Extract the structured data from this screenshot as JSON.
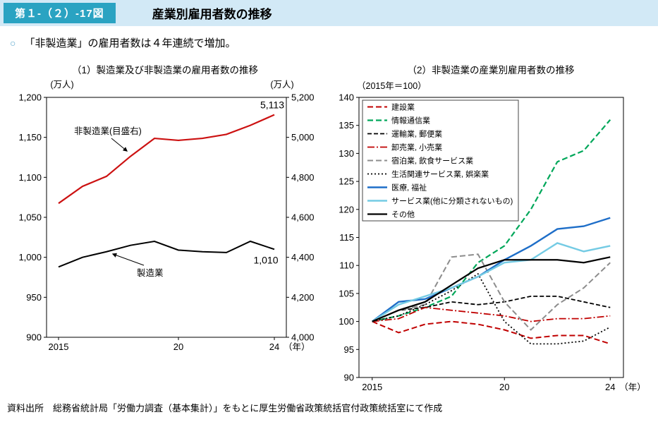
{
  "colors": {
    "band_bg": "#d2e9f6",
    "badge_bg": "#2aa3c2",
    "badge_text": "#ffffff",
    "bullet": "#5aa7cd"
  },
  "header": {
    "figure_label": "第１-（２）-17図",
    "title": "産業別雇用者数の推移"
  },
  "lead": {
    "bullet": "○",
    "text": "「非製造業」の雇用者数は４年連続で増加。"
  },
  "source": "資料出所　総務省統計局「労働力調査（基本集計）」をもとに厚生労働省政策統括官付政策統括室にて作成",
  "chart_data": [
    {
      "type": "line",
      "title": "（1）製造業及び非製造業の雇用者数の推移",
      "grid": false,
      "categories": [
        "2015",
        "2016",
        "2017",
        "2018",
        "2019",
        "2020",
        "2021",
        "2022",
        "2023",
        "2024"
      ],
      "x_ticks": [
        {
          "index": 0,
          "label": "2015"
        },
        {
          "index": 5,
          "label": "20"
        },
        {
          "index": 9,
          "label": "24"
        }
      ],
      "x_suffix": "（年）",
      "left_axis": {
        "label": "(万人)",
        "min": 900,
        "max": 1200,
        "step": 50
      },
      "right_axis": {
        "label": "(万人)",
        "min": 4000,
        "max": 5200,
        "step": 200
      },
      "series": [
        {
          "name": "非製造業(目盛右)",
          "axis": "right",
          "color": "#cc1111",
          "style": "solid",
          "width": 2.2,
          "end_label": "5,113",
          "values": [
            4670,
            4755,
            4805,
            4905,
            4995,
            4985,
            4995,
            5015,
            5060,
            5113
          ]
        },
        {
          "name": "製造業",
          "axis": "left",
          "color": "#000000",
          "style": "solid",
          "width": 2,
          "end_label": "1,010",
          "values": [
            988,
            1000,
            1007,
            1015,
            1020,
            1009,
            1007,
            1006,
            1020,
            1010
          ]
        }
      ]
    },
    {
      "type": "line",
      "title": "（2）非製造業の産業別雇用者数の推移",
      "subtitle": "（2015年＝100）",
      "grid": false,
      "legend_position": "top-left",
      "categories": [
        "2015",
        "2016",
        "2017",
        "2018",
        "2019",
        "2020",
        "2021",
        "2022",
        "2023",
        "2024"
      ],
      "x_ticks": [
        {
          "index": 0,
          "label": "2015"
        },
        {
          "index": 5,
          "label": "20"
        },
        {
          "index": 9,
          "label": "24"
        }
      ],
      "x_suffix": "（年）",
      "y_axis": {
        "min": 90,
        "max": 140,
        "step": 5
      },
      "series": [
        {
          "name": "建設業",
          "color": "#c00000",
          "style": "dash",
          "width": 2,
          "values": [
            100,
            98,
            99.5,
            100,
            99.5,
            98.5,
            97,
            97.5,
            97.5,
            96
          ]
        },
        {
          "name": "情報通信業",
          "color": "#00a75a",
          "style": "dash",
          "width": 2.2,
          "values": [
            100,
            101,
            102.5,
            104.5,
            110.5,
            113.5,
            120,
            128.5,
            130.5,
            136
          ]
        },
        {
          "name": "運輸業, 郵便業",
          "color": "#000000",
          "style": "dashshort",
          "width": 1.8,
          "values": [
            100,
            102,
            102.5,
            103.5,
            103,
            103.5,
            104.5,
            104.5,
            103.5,
            102.5
          ]
        },
        {
          "name": "卸売業, 小売業",
          "color": "#c00000",
          "style": "dashdot",
          "width": 1.8,
          "values": [
            100,
            100.5,
            102.5,
            102,
            101.5,
            101,
            100,
            100.5,
            100.5,
            101
          ]
        },
        {
          "name": "宿泊業, 飲食サービス業",
          "color": "#8c8c8c",
          "style": "dash",
          "width": 2,
          "values": [
            100,
            102,
            103,
            111.5,
            112,
            103.5,
            98.5,
            103,
            106,
            110.5
          ]
        },
        {
          "name": "生活関連サービス業, 娯楽業",
          "color": "#000000",
          "style": "dot",
          "width": 1.8,
          "values": [
            100,
            101,
            103,
            105.5,
            108.5,
            100,
            96,
            96,
            96.5,
            99
          ]
        },
        {
          "name": "医療, 福祉",
          "color": "#1e6ec8",
          "style": "solid",
          "width": 2.4,
          "values": [
            100,
            103.5,
            104,
            106,
            108,
            111,
            113.5,
            116.5,
            117,
            118.5
          ]
        },
        {
          "name": "サービス業(他に分類されないもの)",
          "color": "#74cbe4",
          "style": "solid",
          "width": 2.4,
          "values": [
            100,
            103,
            104.5,
            106,
            108,
            110.5,
            111,
            114,
            112.5,
            113.5
          ]
        },
        {
          "name": "その他",
          "color": "#000000",
          "style": "solid",
          "width": 2.2,
          "values": [
            100,
            102,
            103.5,
            106.5,
            109.5,
            111,
            111,
            111,
            110.5,
            111.5
          ]
        }
      ]
    }
  ]
}
